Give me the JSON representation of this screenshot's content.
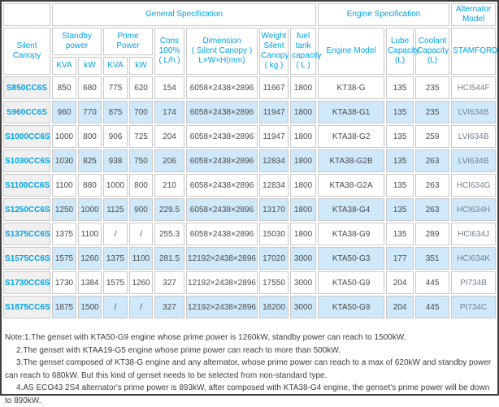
{
  "table": {
    "top_headers": {
      "general": "General Specification",
      "engine": "Engine Specification",
      "alternator": "Alternator\nModel"
    },
    "columns": {
      "silent_canopy": "Silent Canopy",
      "standby_power": "Standby\npower",
      "prime_power": "Prime Power",
      "standby_kva": "KVA",
      "standby_kw": "kW",
      "prime_kva": "KVA",
      "prime_kw": "kW",
      "cons": "Cons\n100%\n( L/h )",
      "dimension": "Dimension\n( Silent Canopy )\nL×W×H(mm)",
      "weight": "Weight\nSilent\nCanopy\n( kg )",
      "fuel_tank": "fuel tank\ncapacity\n( L )",
      "engine_model": "Engine Model",
      "lube": "Lube\nCapacity\n(L)",
      "coolant": "Coolant\nCapacity\n(L)",
      "stamford": "STAMFORD"
    },
    "rows": [
      {
        "model": "S850CC6S",
        "cells": [
          "850",
          "680",
          "775",
          "620",
          "154",
          "6058×2438×2896",
          "11667",
          "1800",
          "KT38-G",
          "135",
          "235",
          "HCI544F"
        ]
      },
      {
        "model": "S960CC6S",
        "cells": [
          "960",
          "770",
          "875",
          "700",
          "174",
          "6058×2438×2896",
          "11947",
          "1800",
          "KTA38-G1",
          "135",
          "235",
          "LVI634B"
        ]
      },
      {
        "model": "S1000CC6S",
        "cells": [
          "1000",
          "800",
          "906",
          "725",
          "204",
          "6058×2438×2896",
          "11947",
          "1800",
          "KTA38-G2",
          "135",
          "259",
          "LVI634B"
        ]
      },
      {
        "model": "S1030CC6S",
        "cells": [
          "1030",
          "825",
          "938",
          "750",
          "206",
          "6058×2438×2896",
          "12834",
          "1800",
          "KTA38-G2B",
          "135",
          "263",
          "LVI634B"
        ]
      },
      {
        "model": "S1100CC6S",
        "cells": [
          "1100",
          "880",
          "1000",
          "800",
          "210",
          "6058×2438×2896",
          "12834",
          "1800",
          "KTA38-G2A",
          "135",
          "263",
          "HCI634G"
        ]
      },
      {
        "model": "S1250CC6S",
        "cells": [
          "1250",
          "1000",
          "1125",
          "900",
          "229.5",
          "6058×2438×2896",
          "13170",
          "1800",
          "KTA38-G4",
          "135",
          "263",
          "HCI634H"
        ]
      },
      {
        "model": "S1375CC6S",
        "cells": [
          "1375",
          "1100",
          "/",
          "/",
          "255.3",
          "6058×2438×2896",
          "15030",
          "1800",
          "KTA38-G9",
          "135",
          "289",
          "HCI634J"
        ]
      },
      {
        "model": "S1575CC6S",
        "cells": [
          "1575",
          "1260",
          "1375",
          "1100",
          "281.5",
          "12192×2438×2896",
          "17020",
          "3000",
          "KTA50-G3",
          "177",
          "351",
          "HCI634K"
        ]
      },
      {
        "model": "S1730CC6S",
        "cells": [
          "1730",
          "1384",
          "1575",
          "1260",
          "327",
          "12192×2438×2896",
          "17550",
          "3000",
          "KTA50-G9",
          "204",
          "445",
          "PI734B"
        ]
      },
      {
        "model": "S1875CC6S",
        "cells": [
          "1875",
          "1500",
          "/",
          "/",
          "327",
          "12192×2438×2896",
          "18200",
          "3000",
          "KTA50-G9",
          "204",
          "445",
          "PI734C"
        ]
      }
    ]
  },
  "notes": [
    "Note:1.The genset with KTA50-G9 engine whose prime power is 1260kW, standby power can reach to 1500kW.",
    "2.The genset with KTAA19-G5 engine whose prime power can reach to more than 500kW.",
    "3.The genset composed of KT38-G engine and any alternator, whose prime power can reach to a max of 620kW and standby power can reach to 680kW. But this kind of genset needs to be selected from non-standard type.",
    "4.AS ECO43 2S4 alternator's prime power is 893kW, after composed with KTA38-G4 engine, the genset's prime power will be down to 890kW."
  ],
  "colors": {
    "header_text": "#00a2e8",
    "model_link": "#00a2e8",
    "stripe_row": "#cfe9fa",
    "model_column_bg": "#f0f0f0",
    "data_text": "#4a4a4a",
    "grid_line": "#c9c9c9",
    "outer_border": "#3f3f3f"
  }
}
